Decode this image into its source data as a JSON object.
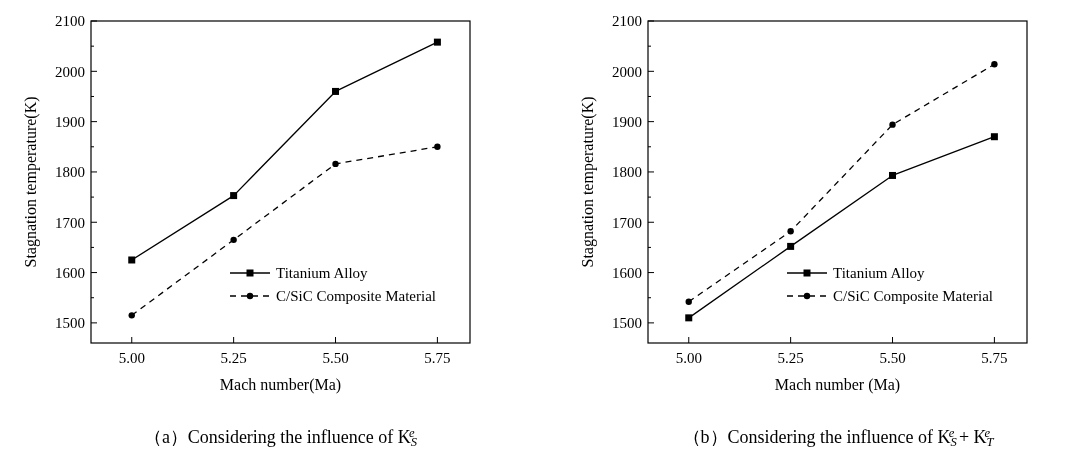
{
  "chart_data": [
    {
      "type": "line",
      "title": "（a）Considering the influence of K$_{S}$$^{e}$",
      "xlabel": "Mach number(Ma)",
      "ylabel": "Stagnation temperature(K)",
      "x": [
        5.0,
        5.25,
        5.5,
        5.75
      ],
      "xlim": [
        4.9,
        5.83
      ],
      "xticks": [
        {
          "value": 5.0,
          "label": "5.00"
        },
        {
          "value": 5.25,
          "label": "5.25"
        },
        {
          "value": 5.5,
          "label": "5.50"
        },
        {
          "value": 5.75,
          "label": "5.75"
        }
      ],
      "ylim": [
        1460,
        2100
      ],
      "yticks": [
        1500,
        {
          "value": 1550,
          "label": null
        },
        1600,
        {
          "value": 1650,
          "label": null
        },
        1700,
        {
          "value": 1750,
          "label": null
        },
        1800,
        {
          "value": 1850,
          "label": null
        },
        1900,
        {
          "value": 1950,
          "label": null
        },
        2000,
        {
          "value": 2050,
          "label": null
        },
        2100
      ],
      "grid": false,
      "legend": "bottom right",
      "series": [
        {
          "name": "Titanium Alloy",
          "color": "#000000",
          "values": [
            1625,
            1753,
            1960,
            2058
          ],
          "marker": "square",
          "line_style": "solid"
        },
        {
          "name": "C/SiC Composite Material",
          "color": "#000000",
          "values": [
            1515,
            1665,
            1816,
            1850
          ],
          "marker": "circle",
          "line_style": "dashed"
        }
      ]
    },
    {
      "type": "line",
      "title": "（b）Considering the influence of K$_{S}$$^{e}$ + K$_{T}$$^{e}$",
      "xlabel": "Mach number (Ma)",
      "ylabel": "Stagnation temperature(K)",
      "x": [
        5.0,
        5.25,
        5.5,
        5.75
      ],
      "xlim": [
        4.9,
        5.83
      ],
      "xticks": [
        {
          "value": 5.0,
          "label": "5.00"
        },
        {
          "value": 5.25,
          "label": "5.25"
        },
        {
          "value": 5.5,
          "label": "5.50"
        },
        {
          "value": 5.75,
          "label": "5.75"
        }
      ],
      "ylim": [
        1460,
        2100
      ],
      "yticks": [
        1500,
        {
          "value": 1550,
          "label": null
        },
        1600,
        {
          "value": 1650,
          "label": null
        },
        1700,
        {
          "value": 1750,
          "label": null
        },
        1800,
        {
          "value": 1850,
          "label": null
        },
        1900,
        {
          "value": 1950,
          "label": null
        },
        2000,
        {
          "value": 2050,
          "label": null
        },
        2100
      ],
      "grid": false,
      "legend": "bottom right",
      "series": [
        {
          "name": "Titanium Alloy",
          "color": "#000000",
          "values": [
            1510,
            1652,
            1793,
            1870
          ],
          "marker": "square",
          "line_style": "solid"
        },
        {
          "name": "C/SiC Composite Material",
          "color": "#000000",
          "values": [
            1542,
            1682,
            1894,
            2014
          ],
          "marker": "circle",
          "line_style": "dashed"
        }
      ]
    }
  ]
}
